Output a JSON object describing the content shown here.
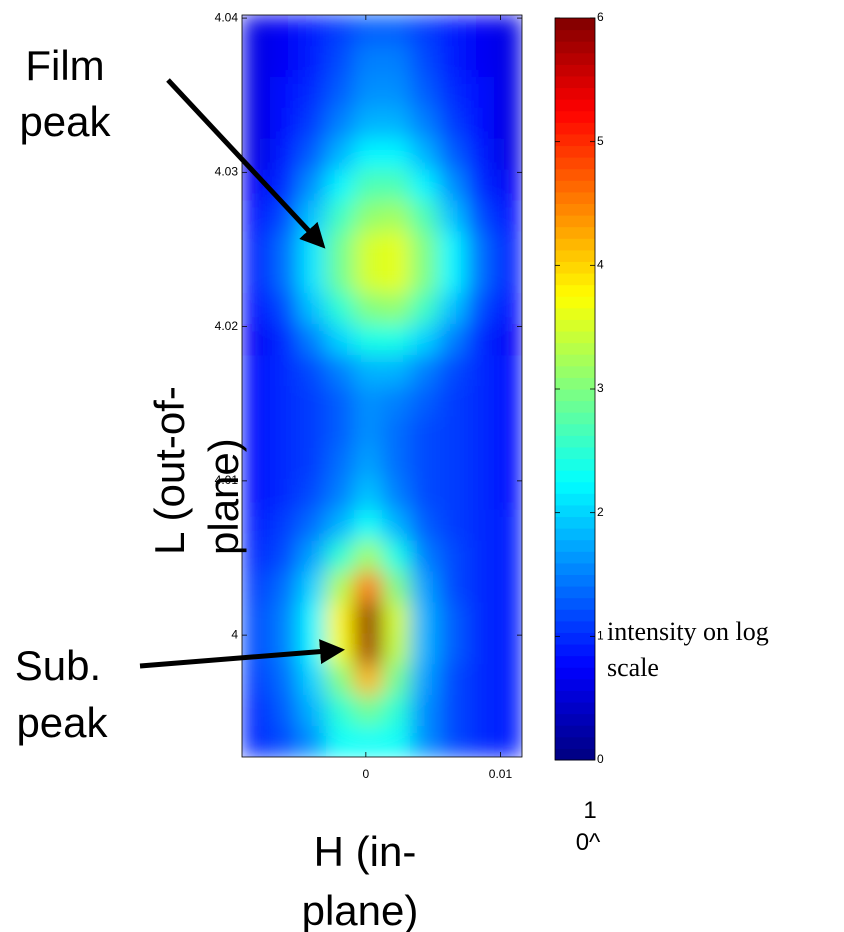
{
  "chart_data": {
    "type": "heatmap",
    "xlabel": [
      "H (in-",
      "plane)"
    ],
    "ylabel": [
      "L (out-of-",
      "plane)"
    ],
    "xlim": [
      -0.0092,
      0.0116
    ],
    "ylim": [
      3.9921,
      4.0402
    ],
    "xticks": [
      0,
      0.01
    ],
    "yticks": [
      4,
      4.01,
      4.02,
      4.03,
      4.04
    ],
    "colormap": "jet",
    "clim": [
      0,
      6
    ],
    "cticks": [
      0,
      1,
      2,
      3,
      4,
      5,
      6
    ],
    "colorbar_label": [
      "intensity on log",
      "scale"
    ],
    "colorbar_unit": [
      "1",
      "0^"
    ],
    "annotations": [
      [
        "Film",
        "peak"
      ],
      [
        "Sub.",
        "peak"
      ]
    ],
    "z": [
      [
        0.6,
        0.7,
        0.9,
        1.1,
        1.3,
        1.3,
        1.1,
        0.9,
        0.7,
        0.6
      ],
      [
        0.6,
        0.7,
        0.9,
        1.2,
        1.5,
        1.5,
        1.2,
        0.9,
        0.7,
        0.6
      ],
      [
        0.6,
        0.8,
        1.0,
        1.3,
        1.6,
        1.6,
        1.3,
        1.0,
        0.8,
        0.6
      ],
      [
        0.6,
        0.8,
        1.1,
        1.5,
        1.8,
        1.8,
        1.5,
        1.1,
        0.8,
        0.6
      ],
      [
        0.6,
        0.9,
        1.3,
        1.8,
        2.2,
        2.2,
        1.8,
        1.3,
        0.9,
        0.6
      ],
      [
        0.7,
        1.0,
        1.6,
        2.2,
        2.7,
        2.7,
        2.2,
        1.6,
        1.0,
        0.7
      ],
      [
        0.8,
        1.2,
        1.9,
        2.6,
        3.1,
        3.2,
        2.7,
        1.9,
        1.2,
        0.8
      ],
      [
        0.9,
        1.4,
        2.1,
        2.9,
        3.5,
        3.6,
        3.0,
        2.2,
        1.4,
        0.9
      ],
      [
        0.9,
        1.4,
        2.1,
        2.9,
        3.5,
        3.6,
        3.0,
        2.2,
        1.4,
        0.9
      ],
      [
        0.8,
        1.2,
        1.9,
        2.5,
        3.0,
        3.1,
        2.6,
        1.9,
        1.2,
        0.8
      ],
      [
        0.7,
        1.0,
        1.5,
        2.0,
        2.4,
        2.4,
        2.0,
        1.5,
        1.0,
        0.7
      ],
      [
        0.8,
        1.0,
        1.2,
        1.5,
        1.8,
        1.8,
        1.5,
        1.2,
        1.0,
        0.8
      ],
      [
        0.8,
        1.0,
        1.1,
        1.3,
        1.6,
        1.5,
        1.3,
        1.1,
        1.0,
        0.8
      ],
      [
        0.8,
        1.0,
        1.1,
        1.3,
        1.6,
        1.4,
        1.2,
        1.1,
        1.0,
        0.8
      ],
      [
        0.8,
        1.0,
        1.1,
        1.4,
        1.7,
        1.4,
        1.2,
        1.1,
        1.0,
        0.8
      ],
      [
        0.8,
        1.0,
        1.2,
        1.5,
        1.9,
        1.5,
        1.2,
        1.1,
        1.0,
        0.8
      ],
      [
        0.9,
        1.1,
        1.4,
        1.8,
        2.3,
        1.8,
        1.3,
        1.1,
        1.0,
        0.9
      ],
      [
        1.0,
        1.2,
        1.7,
        2.5,
        3.2,
        2.4,
        1.5,
        1.2,
        1.0,
        0.9
      ],
      [
        1.1,
        1.4,
        2.0,
        3.3,
        4.6,
        3.0,
        1.7,
        1.2,
        1.0,
        0.9
      ],
      [
        1.2,
        1.5,
        2.2,
        3.8,
        5.9,
        3.5,
        1.8,
        1.3,
        1.0,
        0.9
      ],
      [
        1.2,
        1.5,
        2.2,
        3.7,
        5.8,
        3.4,
        1.8,
        1.3,
        1.0,
        0.9
      ],
      [
        1.1,
        1.4,
        2.0,
        3.0,
        4.2,
        2.9,
        1.7,
        1.2,
        1.0,
        0.9
      ],
      [
        1.0,
        1.3,
        1.8,
        2.5,
        2.9,
        2.5,
        1.6,
        1.2,
        1.0,
        0.9
      ],
      [
        1.0,
        1.2,
        1.6,
        2.3,
        2.3,
        2.3,
        1.6,
        1.2,
        1.0,
        0.9
      ]
    ]
  }
}
